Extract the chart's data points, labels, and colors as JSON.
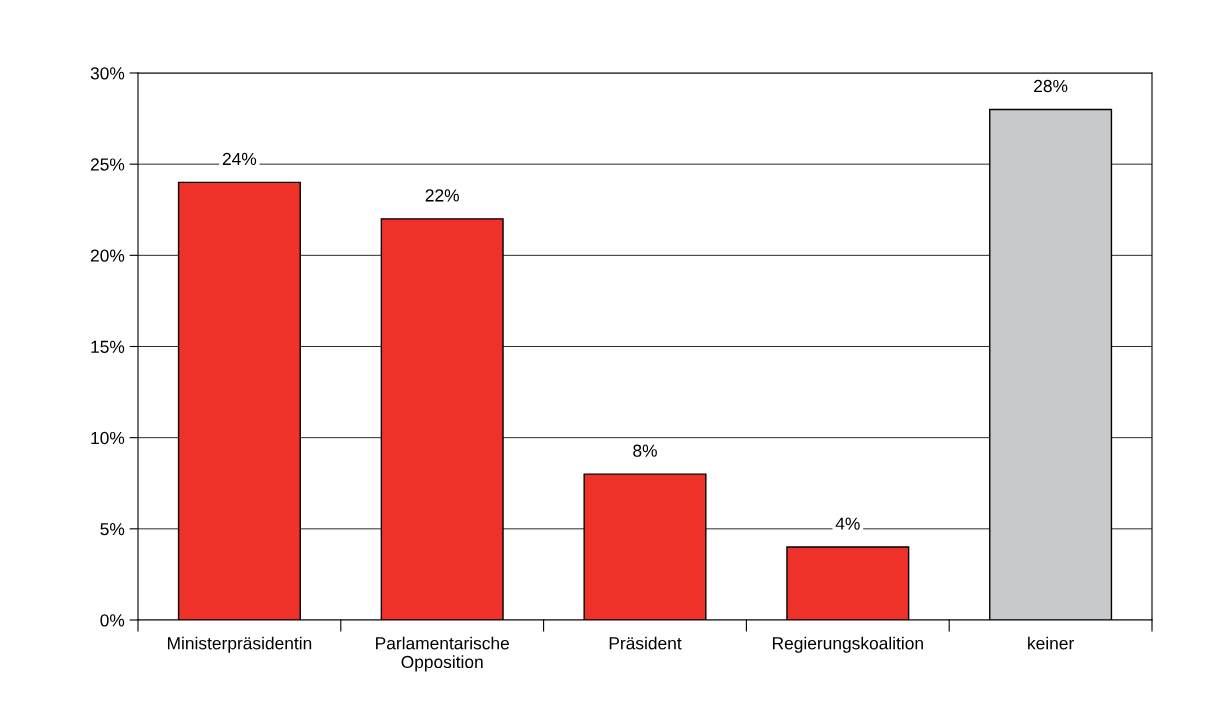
{
  "chart_data": {
    "type": "bar",
    "categories": [
      "Ministerpräsidentin",
      "Parlamentarische\nOpposition",
      "Präsident",
      "Regierungskoalition",
      "keiner"
    ],
    "values": [
      24,
      22,
      8,
      4,
      28
    ],
    "colors": [
      "#ee3129",
      "#ee3129",
      "#ee3129",
      "#ee3129",
      "#c8c9cb"
    ],
    "value_labels": [
      "24%",
      "22%",
      "8%",
      "4%",
      "28%"
    ],
    "ylim": [
      0,
      30
    ],
    "yticks": [
      {
        "value": 0,
        "label": "0%"
      },
      {
        "value": 5,
        "label": "5%"
      },
      {
        "value": 10,
        "label": "10%"
      },
      {
        "value": 15,
        "label": "15%"
      },
      {
        "value": 20,
        "label": "20%"
      },
      {
        "value": 25,
        "label": "25%"
      },
      {
        "value": 30,
        "label": "30%"
      }
    ],
    "grid": "y",
    "legend": false
  }
}
